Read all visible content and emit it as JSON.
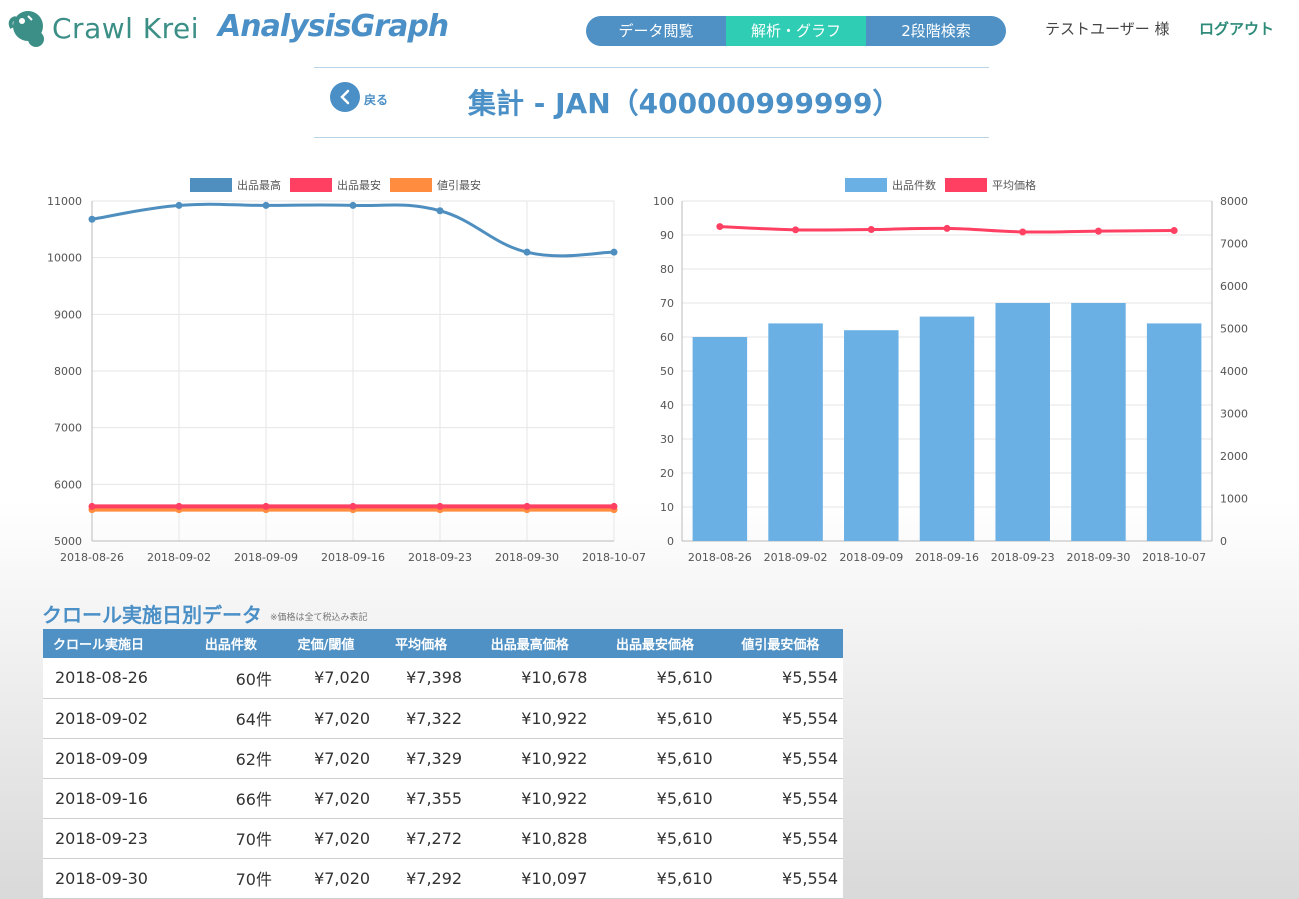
{
  "header": {
    "logo_text": "Crawl Krei",
    "app_title": "AnalysisGraph",
    "nav_tabs": [
      {
        "label": "データ閲覧",
        "active": false
      },
      {
        "label": "解析・グラフ",
        "active": true
      },
      {
        "label": "2段階検索",
        "active": false
      }
    ],
    "user_name": "テストユーザー 様",
    "logout_label": "ログアウト"
  },
  "title_bar": {
    "back_label": "戻る",
    "page_title": "集計 - JAN（400000999999）"
  },
  "colors": {
    "accent": "#4a8fc6",
    "active_tab": "#2fcdb4",
    "max_price": "#4f8fc0",
    "min_price": "#ff4063",
    "discount_min": "#ff8c3f",
    "count_bar": "#6ab0e4",
    "avg_price": "#ff4063"
  },
  "chart_data": [
    {
      "type": "line",
      "x": [
        "2018-08-26",
        "2018-09-02",
        "2018-09-09",
        "2018-09-16",
        "2018-09-23",
        "2018-09-30",
        "2018-10-07"
      ],
      "series": [
        {
          "name": "出品最高",
          "values": [
            10678,
            10922,
            10922,
            10922,
            10828,
            10097,
            10097
          ]
        },
        {
          "name": "出品最安",
          "values": [
            5610,
            5610,
            5610,
            5610,
            5610,
            5610,
            5610
          ]
        },
        {
          "name": "値引最安",
          "values": [
            5554,
            5554,
            5554,
            5554,
            5554,
            5554,
            5554
          ]
        }
      ],
      "yticks": [
        5000,
        6000,
        7000,
        8000,
        9000,
        10000,
        11000
      ],
      "ylim": [
        5000,
        11000
      ],
      "grid": true,
      "legend": "top-center"
    },
    {
      "type": "bar",
      "categories": [
        "2018-08-26",
        "2018-09-02",
        "2018-09-09",
        "2018-09-16",
        "2018-09-23",
        "2018-09-30",
        "2018-10-07"
      ],
      "series": [
        {
          "name": "出品件数",
          "type": "bar",
          "axis": "left",
          "values": [
            60,
            64,
            62,
            66,
            70,
            70,
            64
          ]
        },
        {
          "name": "平均価格",
          "type": "line",
          "axis": "right",
          "values": [
            7398,
            7322,
            7329,
            7355,
            7272,
            7292,
            7305
          ]
        }
      ],
      "ylim_left": [
        0,
        100
      ],
      "yticks_left": [
        0,
        10,
        20,
        30,
        40,
        50,
        60,
        70,
        80,
        90,
        100
      ],
      "ylim_right": [
        0,
        8000
      ],
      "yticks_right": [
        0,
        1000,
        2000,
        3000,
        4000,
        5000,
        6000,
        7000,
        8000
      ],
      "grid": true,
      "legend": "top-center"
    }
  ],
  "table": {
    "title": "クロール実施日別データ",
    "note": "※価格は全て税込み表記",
    "headers": [
      "クロール実施日",
      "出品件数",
      "定価/閾値",
      "平均価格",
      "出品最高価格",
      "出品最安価格",
      "値引最安価格"
    ],
    "rows": [
      [
        "2018-08-26",
        "60件",
        "¥7,020",
        "¥7,398",
        "¥10,678",
        "¥5,610",
        "¥5,554"
      ],
      [
        "2018-09-02",
        "64件",
        "¥7,020",
        "¥7,322",
        "¥10,922",
        "¥5,610",
        "¥5,554"
      ],
      [
        "2018-09-09",
        "62件",
        "¥7,020",
        "¥7,329",
        "¥10,922",
        "¥5,610",
        "¥5,554"
      ],
      [
        "2018-09-16",
        "66件",
        "¥7,020",
        "¥7,355",
        "¥10,922",
        "¥5,610",
        "¥5,554"
      ],
      [
        "2018-09-23",
        "70件",
        "¥7,020",
        "¥7,272",
        "¥10,828",
        "¥5,610",
        "¥5,554"
      ],
      [
        "2018-09-30",
        "70件",
        "¥7,020",
        "¥7,292",
        "¥10,097",
        "¥5,610",
        "¥5,554"
      ]
    ]
  }
}
